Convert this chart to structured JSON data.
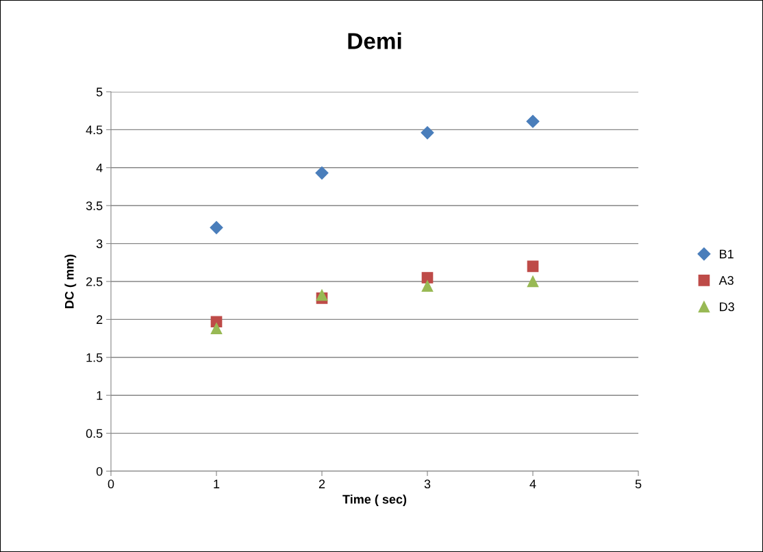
{
  "chart_data": {
    "type": "scatter",
    "title": "Demi",
    "xlabel": "Time ( sec)",
    "ylabel": "DC ( mm)",
    "x": [
      1,
      2,
      3,
      4
    ],
    "series": [
      {
        "name": "B1",
        "color": "#4a7ebb",
        "marker": "diamond",
        "values": [
          3.21,
          3.93,
          4.46,
          4.61
        ]
      },
      {
        "name": "A3",
        "color": "#be4b48",
        "marker": "square",
        "values": [
          1.97,
          2.28,
          2.55,
          2.7
        ]
      },
      {
        "name": "D3",
        "color": "#98b954",
        "marker": "triangle",
        "values": [
          1.88,
          2.32,
          2.44,
          2.5
        ]
      }
    ],
    "xlim": [
      0,
      5
    ],
    "xticks": [
      0,
      1,
      2,
      3,
      4,
      5
    ],
    "ylim": [
      0,
      5
    ],
    "yticks": [
      0,
      0.5,
      1,
      1.5,
      2,
      2.5,
      3,
      3.5,
      4,
      4.5,
      5
    ],
    "grid": "y",
    "legend": "right"
  }
}
